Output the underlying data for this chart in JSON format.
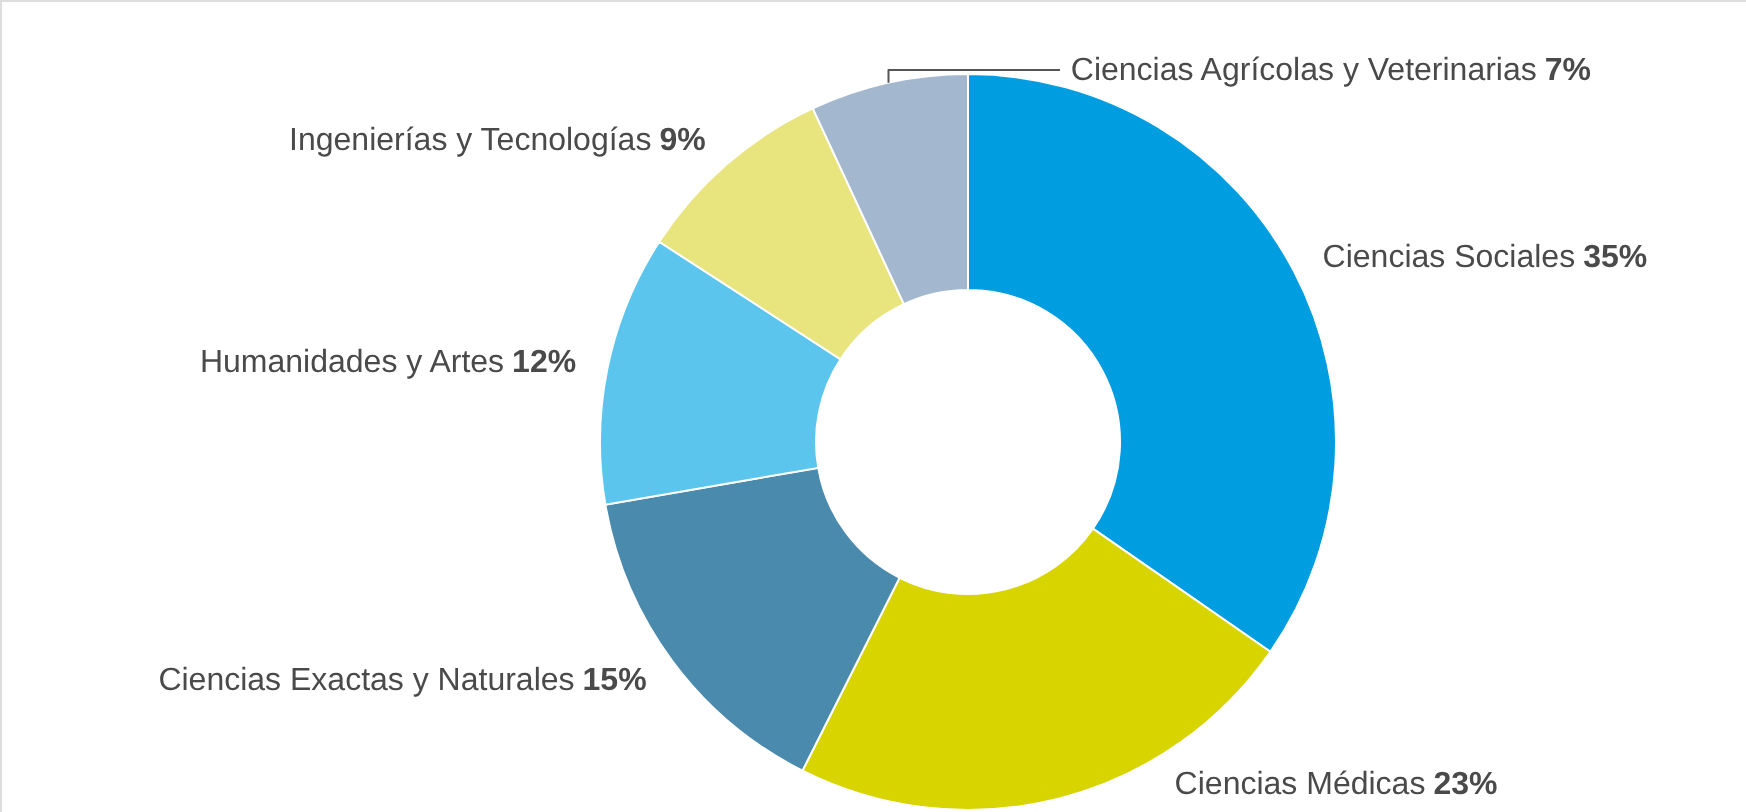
{
  "chart_data": {
    "type": "donut",
    "categories": [
      "Ciencias Sociales",
      "Ciencias Médicas",
      "Ciencias Exactas y Naturales",
      "Humanidades y Artes",
      "Ingenierías y Tecnologías",
      "Ciencias Agrícolas y Veterinarias"
    ],
    "values": [
      35,
      23,
      15,
      12,
      9,
      7
    ],
    "value_labels": [
      "35%",
      "23%",
      "15%",
      "12%",
      "9%",
      "7%"
    ],
    "colors": [
      "#009de0",
      "#d8d400",
      "#4a8aad",
      "#5bc5ee",
      "#e8e47e",
      "#a3b8cf"
    ]
  }
}
